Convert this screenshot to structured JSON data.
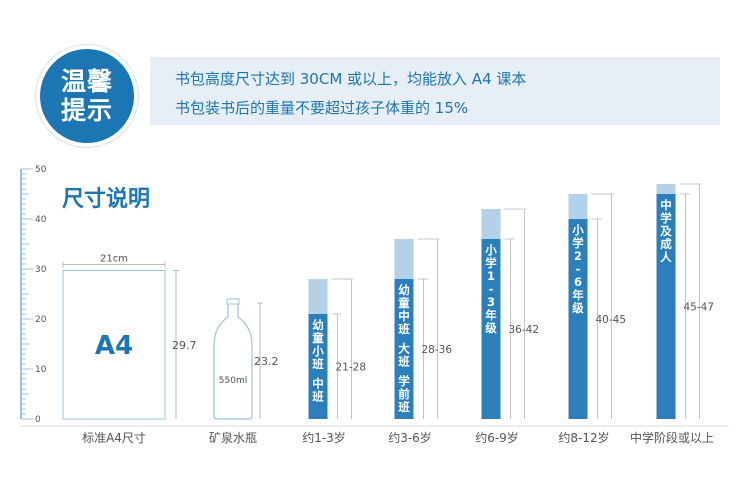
{
  "tips": {
    "badge_line1": "温馨",
    "badge_line2": "提示",
    "line1": "书包高度尺寸达到 30CM 或以上，均能放入 A4 课本",
    "line2": "书包装书后的重量不要超过孩子体重的 15%"
  },
  "chart_data": {
    "type": "bar",
    "title": "尺寸说明",
    "yticks": [
      "0",
      "10",
      "20",
      "30",
      "40",
      "50"
    ],
    "ylim": [
      0,
      50
    ],
    "reference_items": [
      {
        "name": "a4-paper",
        "caption": "标准A4尺寸",
        "height": 29.7,
        "height_label": "29.7",
        "width_label": "21cm",
        "inner_label": "A4"
      },
      {
        "name": "water-bottle",
        "caption": "矿泉水瓶",
        "height": 23.2,
        "height_label": "23.2",
        "inner_label": "550ml"
      }
    ],
    "categories": [
      "约1-3岁",
      "约3-6岁",
      "约6-9岁",
      "约8-12岁",
      "中学阶段或以上"
    ],
    "bars": [
      {
        "low": 21,
        "high": 28,
        "range_label": "21-28",
        "text": "幼童小班 中班"
      },
      {
        "low": 28,
        "high": 36,
        "range_label": "28-36",
        "text": "幼童中班 大班 学前班"
      },
      {
        "low": 36,
        "high": 42,
        "range_label": "36-42",
        "text": "小学1-3年级"
      },
      {
        "low": 40,
        "high": 45,
        "range_label": "40-45",
        "text": "小学2-6年级"
      },
      {
        "low": 45,
        "high": 47,
        "range_label": "45-47",
        "text": "中学及成人"
      }
    ],
    "colors": {
      "dark": "#2b7fba",
      "light": "#b3d2ea",
      "text": "#1b76b3",
      "axis": "#9cc3e2",
      "gray": "#555555"
    }
  }
}
